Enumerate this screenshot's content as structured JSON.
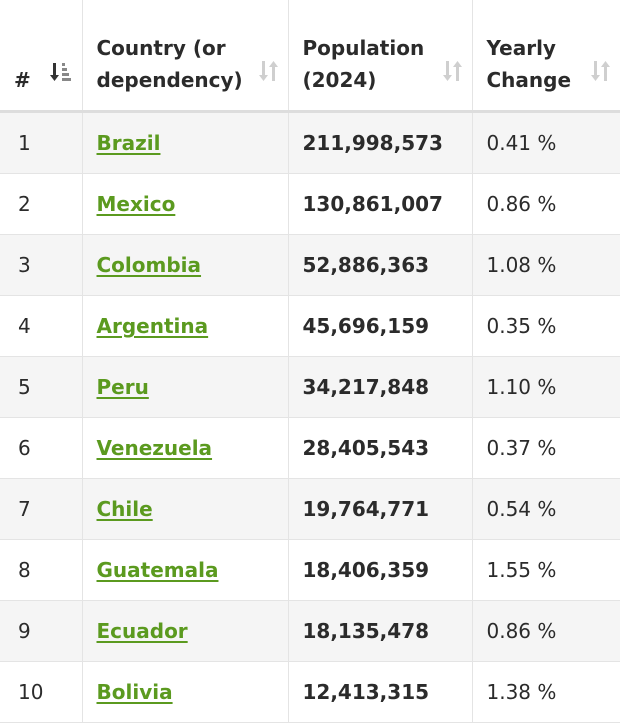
{
  "table": {
    "headers": {
      "num": "#",
      "country_line1": "Country (or",
      "country_line2": "dependency)",
      "population_line1": "Population",
      "population_line2": "(2024)",
      "change_line1": "Yearly",
      "change_line2": "Change"
    },
    "rows": [
      {
        "rank": "1",
        "country": "Brazil",
        "population": "211,998,573",
        "change": "0.41 %"
      },
      {
        "rank": "2",
        "country": "Mexico",
        "population": "130,861,007",
        "change": "0.86 %"
      },
      {
        "rank": "3",
        "country": "Colombia",
        "population": "52,886,363",
        "change": "1.08 %"
      },
      {
        "rank": "4",
        "country": "Argentina",
        "population": "45,696,159",
        "change": "0.35 %"
      },
      {
        "rank": "5",
        "country": "Peru",
        "population": "34,217,848",
        "change": "1.10 %"
      },
      {
        "rank": "6",
        "country": "Venezuela",
        "population": "28,405,543",
        "change": "0.37 %"
      },
      {
        "rank": "7",
        "country": "Chile",
        "population": "19,764,771",
        "change": "0.54 %"
      },
      {
        "rank": "8",
        "country": "Guatemala",
        "population": "18,406,359",
        "change": "1.55 %"
      },
      {
        "rank": "9",
        "country": "Ecuador",
        "population": "18,135,478",
        "change": "0.86 %"
      },
      {
        "rank": "10",
        "country": "Bolivia",
        "population": "12,413,315",
        "change": "1.38 %"
      }
    ]
  },
  "icons": {
    "rank_sort": "sort-ascending-active-icon",
    "column_sort": "sort-both-icon"
  },
  "colors": {
    "link": "#5b9a1f",
    "row_stripe": "#f5f5f5",
    "sort_active": "#333333",
    "sort_inactive": "#cfcfcf"
  }
}
